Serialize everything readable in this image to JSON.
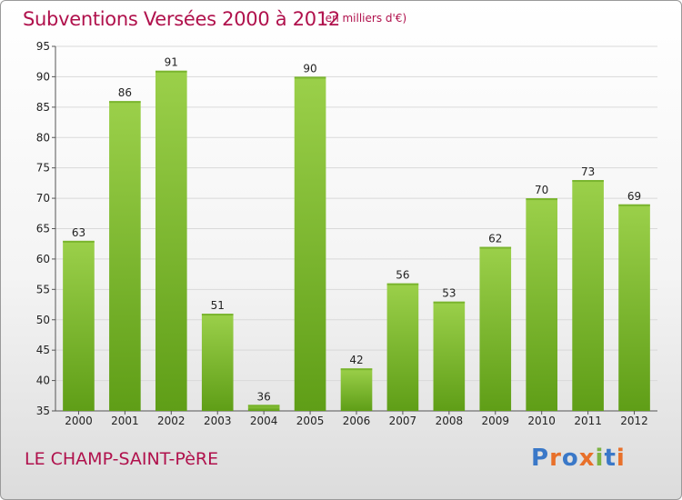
{
  "header": {
    "title": "Subventions Versées 2000 à 2012",
    "unit_note": "(en milliers d'€)"
  },
  "footer": {
    "commune": "LE CHAMP-SAINT-PèRE",
    "logo_text": "Proxiti",
    "logo_colors": [
      "#3a78c8",
      "#e8702a",
      "#3a78c8",
      "#e8702a",
      "#7cb342",
      "#3a78c8",
      "#e8702a"
    ]
  },
  "colors": {
    "title": "#b0114c",
    "bar_light": "#9bd04a",
    "bar_dark": "#5f9e17"
  },
  "chart_data": {
    "type": "bar",
    "categories": [
      "2000",
      "2001",
      "2002",
      "2003",
      "2004",
      "2005",
      "2006",
      "2007",
      "2008",
      "2009",
      "2010",
      "2011",
      "2012"
    ],
    "values": [
      63,
      86,
      91,
      51,
      36,
      90,
      42,
      56,
      53,
      62,
      70,
      73,
      69
    ],
    "ylim": [
      35,
      95
    ],
    "yticks": [
      35,
      40,
      45,
      50,
      55,
      60,
      65,
      70,
      75,
      80,
      85,
      90,
      95
    ],
    "grid": true,
    "title": "Subventions Versées 2000 à 2012",
    "xlabel": "",
    "ylabel": ""
  }
}
